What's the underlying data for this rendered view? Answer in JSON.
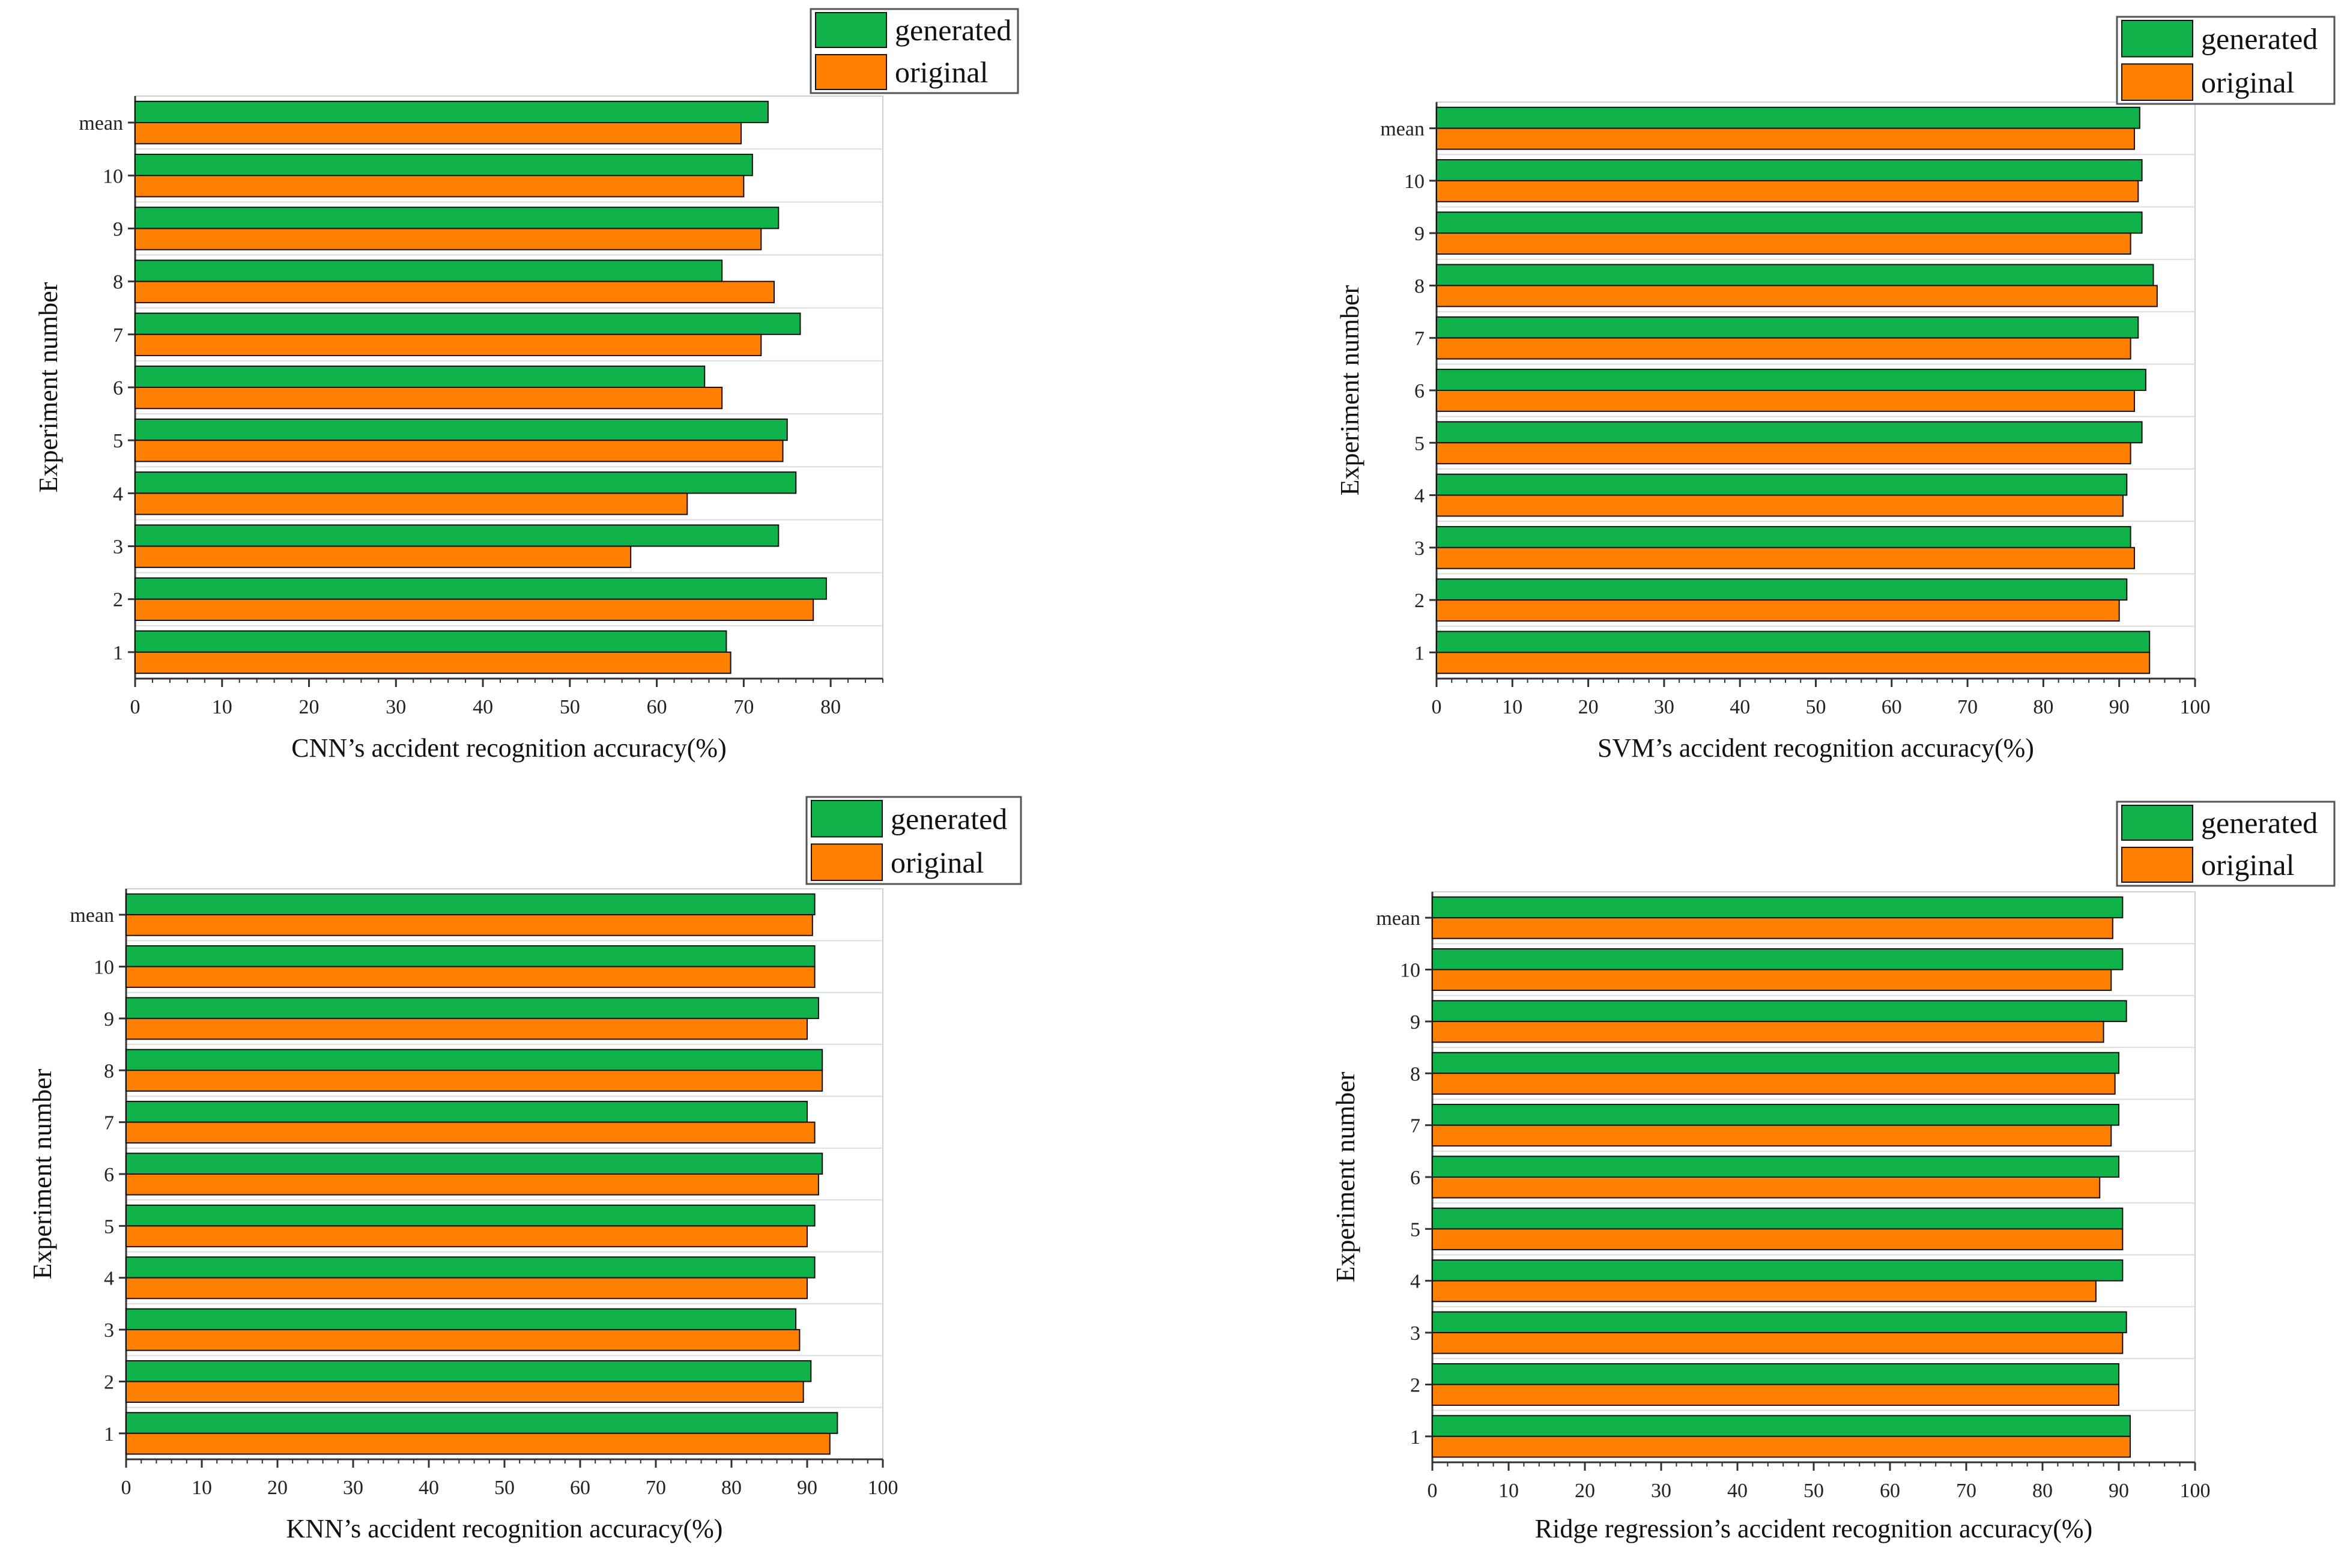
{
  "colors": {
    "generated": "#10b24a",
    "original": "#ff8000",
    "axis": "#333333",
    "grid": "#dddddd"
  },
  "chart_data": [
    {
      "type": "bar",
      "orientation": "horizontal",
      "title": "",
      "xlabel": "CNN’s accident recognition accuracy(%)",
      "ylabel": "Experiment number",
      "categories": [
        "1",
        "2",
        "3",
        "4",
        "5",
        "6",
        "7",
        "8",
        "9",
        "10",
        "mean"
      ],
      "xlim": [
        0,
        86
      ],
      "xticks": [
        0,
        10,
        20,
        30,
        40,
        50,
        60,
        70,
        80
      ],
      "legend": [
        "generated",
        "original"
      ],
      "legend_position": "top-right",
      "series": [
        {
          "name": "generated",
          "values": [
            68,
            79.5,
            74,
            76,
            75,
            65.5,
            76.5,
            67.5,
            74,
            71,
            72.8
          ]
        },
        {
          "name": "original",
          "values": [
            68.5,
            78,
            57,
            63.5,
            74.5,
            67.5,
            72,
            73.5,
            72,
            70,
            69.7
          ]
        }
      ]
    },
    {
      "type": "bar",
      "orientation": "horizontal",
      "title": "",
      "xlabel": "SVM’s accident recognition accuracy(%)",
      "ylabel": "Experiment number",
      "categories": [
        "1",
        "2",
        "3",
        "4",
        "5",
        "6",
        "7",
        "8",
        "9",
        "10",
        "mean"
      ],
      "xlim": [
        0,
        100
      ],
      "xticks": [
        0,
        10,
        20,
        30,
        40,
        50,
        60,
        70,
        80,
        90,
        100
      ],
      "legend": [
        "generated",
        "original"
      ],
      "legend_position": "top-right",
      "series": [
        {
          "name": "generated",
          "values": [
            94,
            91,
            91.5,
            91,
            93,
            93.5,
            92.5,
            94.5,
            93,
            93,
            92.7
          ]
        },
        {
          "name": "original",
          "values": [
            94,
            90,
            92,
            90.5,
            91.5,
            92,
            91.5,
            95,
            91.5,
            92.5,
            92
          ]
        }
      ]
    },
    {
      "type": "bar",
      "orientation": "horizontal",
      "title": "",
      "xlabel": "KNN’s accident recognition accuracy(%)",
      "ylabel": "Experiment number",
      "categories": [
        "1",
        "2",
        "3",
        "4",
        "5",
        "6",
        "7",
        "8",
        "9",
        "10",
        "mean"
      ],
      "xlim": [
        0,
        100
      ],
      "xticks": [
        0,
        10,
        20,
        30,
        40,
        50,
        60,
        70,
        80,
        90,
        100
      ],
      "legend": [
        "generated",
        "original"
      ],
      "legend_position": "top-right",
      "series": [
        {
          "name": "generated",
          "values": [
            94,
            90.5,
            88.5,
            91,
            91,
            92,
            90,
            92,
            91.5,
            91,
            91
          ]
        },
        {
          "name": "original",
          "values": [
            93,
            89.5,
            89,
            90,
            90,
            91.5,
            91,
            92,
            90,
            91,
            90.7
          ]
        }
      ]
    },
    {
      "type": "bar",
      "orientation": "horizontal",
      "title": "",
      "xlabel": "Ridge regression’s accident recognition accuracy(%)",
      "ylabel": "Experiment number",
      "categories": [
        "1",
        "2",
        "3",
        "4",
        "5",
        "6",
        "7",
        "8",
        "9",
        "10",
        "mean"
      ],
      "xlim": [
        0,
        100
      ],
      "xticks": [
        0,
        10,
        20,
        30,
        40,
        50,
        60,
        70,
        80,
        90,
        100
      ],
      "legend": [
        "generated",
        "original"
      ],
      "legend_position": "top-right",
      "series": [
        {
          "name": "generated",
          "values": [
            91.5,
            90,
            91,
            90.5,
            90.5,
            90,
            90,
            90,
            91,
            90.5,
            90.5
          ]
        },
        {
          "name": "original",
          "values": [
            91.5,
            90,
            90.5,
            87,
            90.5,
            87.5,
            89,
            89.5,
            88,
            89,
            89.2
          ]
        }
      ]
    }
  ]
}
